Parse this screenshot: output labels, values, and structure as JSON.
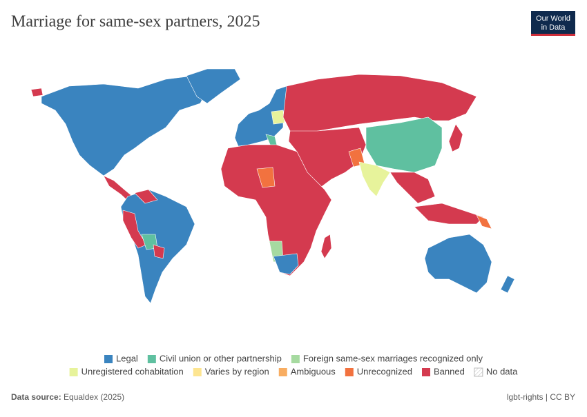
{
  "header": {
    "title": "Marriage for same-sex partners, 2025",
    "logo": [
      "Our World",
      "in Data"
    ]
  },
  "legend": {
    "items": [
      {
        "label": "Legal",
        "color": "#3a84bf"
      },
      {
        "label": "Civil union or other partnership",
        "color": "#5fc0a0"
      },
      {
        "label": "Foreign same-sex marriages recognized only",
        "color": "#a6daa0"
      },
      {
        "label": "Unregistered cohabitation",
        "color": "#e7f39b"
      },
      {
        "label": "Varies by region",
        "color": "#fde591"
      },
      {
        "label": "Ambiguous",
        "color": "#f8ad62"
      },
      {
        "label": "Unrecognized",
        "color": "#f2723f"
      },
      {
        "label": "Banned",
        "color": "#d43a4f"
      },
      {
        "label": "No data",
        "color": "none"
      }
    ]
  },
  "footer": {
    "source_label": "Data source:",
    "source": "Equaldex (2025)",
    "license": "lgbt-rights | CC BY"
  }
}
